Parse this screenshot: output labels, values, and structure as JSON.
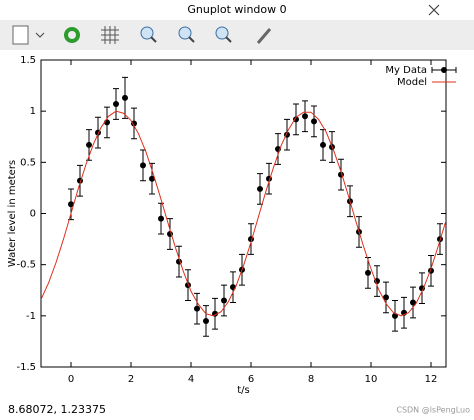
{
  "window": {
    "title": "Gnuplot window 0",
    "status": "8.68072,  1.23375",
    "watermark": "CSDN @lsPengLuo"
  },
  "chart_data": {
    "type": "line",
    "xlabel": "t/s",
    "ylabel": "Water level in meters",
    "xlim": [
      -1,
      12.5
    ],
    "ylim": [
      -1.5,
      1.5
    ],
    "xticks": [
      0,
      2,
      4,
      6,
      8,
      10,
      12
    ],
    "yticks": [
      -1.5,
      -1,
      -0.5,
      0,
      0.5,
      1,
      1.5
    ],
    "legend": "top-right",
    "series": [
      {
        "name": "My Data",
        "color": "#000000",
        "style": "errorbars",
        "x": [
          0,
          0.3,
          0.6,
          0.9,
          1.2,
          1.5,
          1.8,
          2.1,
          2.4,
          2.7,
          3.0,
          3.3,
          3.6,
          3.9,
          4.2,
          4.5,
          4.8,
          5.1,
          5.4,
          5.7,
          6.0,
          6.3,
          6.6,
          6.9,
          7.2,
          7.5,
          7.8,
          8.1,
          8.4,
          8.7,
          9.0,
          9.3,
          9.6,
          9.9,
          10.2,
          10.5,
          10.8,
          11.1,
          11.4,
          11.7,
          12.0,
          12.3
        ],
        "values": [
          0.09,
          0.32,
          0.67,
          0.79,
          0.89,
          1.07,
          1.13,
          0.88,
          0.47,
          0.34,
          -0.05,
          -0.2,
          -0.47,
          -0.7,
          -0.93,
          -1.05,
          -0.98,
          -0.85,
          -0.72,
          -0.55,
          -0.25,
          0.24,
          0.34,
          0.63,
          0.77,
          0.92,
          0.95,
          0.9,
          0.67,
          0.65,
          0.38,
          0.12,
          -0.18,
          -0.58,
          -0.66,
          -0.82,
          -1.0,
          -0.97,
          -0.87,
          -0.73,
          -0.56,
          -0.25
        ],
        "errors": [
          0.15,
          0.15,
          0.15,
          0.15,
          0.15,
          0.15,
          0.2,
          0.15,
          0.15,
          0.15,
          0.15,
          0.15,
          0.15,
          0.15,
          0.15,
          0.15,
          0.15,
          0.15,
          0.15,
          0.15,
          0.15,
          0.15,
          0.15,
          0.15,
          0.15,
          0.15,
          0.15,
          0.15,
          0.15,
          0.15,
          0.15,
          0.15,
          0.15,
          0.15,
          0.15,
          0.15,
          0.15,
          0.15,
          0.15,
          0.15,
          0.15,
          0.15
        ]
      },
      {
        "name": "Model",
        "color": "#e0301e",
        "style": "line",
        "x": [
          -1,
          -0.75,
          -0.5,
          -0.25,
          0,
          0.25,
          0.5,
          0.75,
          1,
          1.25,
          1.5,
          1.75,
          2,
          2.25,
          2.5,
          2.75,
          3,
          3.25,
          3.5,
          3.75,
          4,
          4.25,
          4.5,
          4.75,
          5,
          5.25,
          5.5,
          5.75,
          6,
          6.25,
          6.5,
          6.75,
          7,
          7.25,
          7.5,
          7.75,
          8,
          8.25,
          8.5,
          8.75,
          9,
          9.25,
          9.5,
          9.75,
          10,
          10.25,
          10.5,
          10.75,
          11,
          11.25,
          11.5,
          11.75,
          12,
          12.25,
          12.5
        ],
        "values": [
          -0.84,
          -0.68,
          -0.48,
          -0.25,
          0,
          0.25,
          0.48,
          0.68,
          0.84,
          0.95,
          1.0,
          0.98,
          0.91,
          0.78,
          0.6,
          0.38,
          0.14,
          -0.11,
          -0.35,
          -0.57,
          -0.76,
          -0.89,
          -0.98,
          -1.0,
          -0.96,
          -0.86,
          -0.71,
          -0.51,
          -0.28,
          -0.03,
          0.22,
          0.45,
          0.66,
          0.82,
          0.94,
          0.99,
          0.99,
          0.92,
          0.8,
          0.62,
          0.41,
          0.17,
          -0.08,
          -0.32,
          -0.54,
          -0.74,
          -0.88,
          -0.97,
          -1.0,
          -0.97,
          -0.88,
          -0.73,
          -0.54,
          -0.31,
          -0.07
        ]
      }
    ]
  }
}
